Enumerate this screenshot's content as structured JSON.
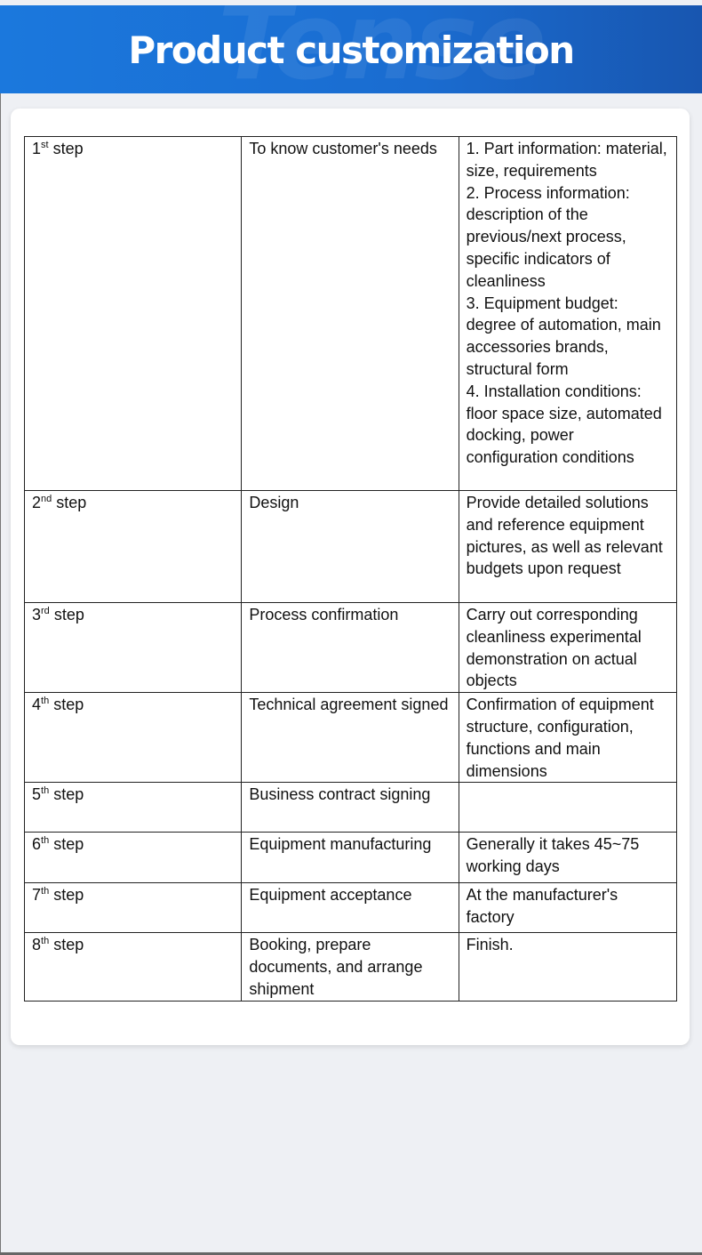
{
  "header": {
    "title": "Product customization",
    "watermark": "Tense"
  },
  "rows": [
    {
      "num": "1",
      "sup": "st",
      "word": "step",
      "title": "To know customer's needs",
      "details": [
        "1. Part information: material, size, requirements",
        "2. Process information: description of the previous/next process, specific indicators of cleanliness",
        "3. Equipment budget: degree of automation, main accessories brands, structural form",
        "4. Installation conditions: floor space size, automated docking, power configuration conditions"
      ]
    },
    {
      "num": "2",
      "sup": "nd",
      "word": "step",
      "title": "Design",
      "details": [
        "Provide detailed solutions and reference equipment pictures, as well as relevant budgets upon request"
      ]
    },
    {
      "num": "3",
      "sup": "rd",
      "word": "step",
      "title": "Process confirmation",
      "details": [
        "Carry out corresponding cleanliness experimental demonstration on actual objects"
      ]
    },
    {
      "num": "4",
      "sup": "th",
      "word": "step",
      "title": "Technical agreement signed",
      "details": [
        "Confirmation of equipment structure, configuration, functions and main dimensions"
      ]
    },
    {
      "num": "5",
      "sup": "th",
      "word": "step",
      "title": "Business contract signing",
      "details": [
        ""
      ]
    },
    {
      "num": "6",
      "sup": "th",
      "word": "step",
      "title": "Equipment manufacturing",
      "details": [
        "Generally it takes 45~75 working days"
      ]
    },
    {
      "num": "7",
      "sup": "th",
      "word": "step",
      "title": "Equipment acceptance",
      "details": [
        "At the manufacturer's factory"
      ]
    },
    {
      "num": "8",
      "sup": "th",
      "word": "step",
      "title": "Booking, prepare documents, and arrange shipment",
      "details": [
        "Finish."
      ]
    }
  ]
}
